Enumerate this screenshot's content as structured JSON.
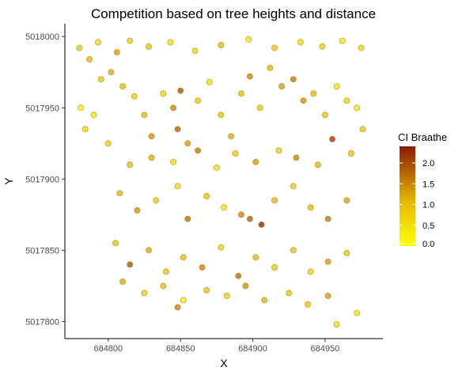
{
  "chart_data": {
    "type": "scatter",
    "title": "Competition based on tree heights and distance",
    "xlabel": "X",
    "ylabel": "Y",
    "xlim": [
      684770,
      684990
    ],
    "ylim": [
      5017788,
      5018009
    ],
    "x_ticks": [
      684800,
      684850,
      684900,
      684950
    ],
    "x_tick_labels": [
      "684800",
      "684850",
      "684900",
      "684950"
    ],
    "y_ticks": [
      5017800,
      5017850,
      5017900,
      5017950,
      5018000
    ],
    "y_tick_labels": [
      "5017800",
      "5017850",
      "5017900",
      "5017950",
      "5018000"
    ],
    "grid": false,
    "legend": {
      "title": "CI Braathe",
      "position": "right",
      "type": "colorbar",
      "range": [
        0.0,
        2.4
      ],
      "ticks": [
        0.0,
        0.5,
        1.0,
        1.5,
        2.0
      ],
      "tick_labels": [
        "0.0",
        "0.5",
        "1.0",
        "1.5",
        "2.0"
      ],
      "colors": [
        "#ffff00",
        "#e6b800",
        "#8b1a00"
      ]
    },
    "points": [
      {
        "x": 684780,
        "y": 5017992,
        "ci": 0.9
      },
      {
        "x": 684787,
        "y": 5017984,
        "ci": 1.2
      },
      {
        "x": 684793,
        "y": 5017996,
        "ci": 0.6
      },
      {
        "x": 684806,
        "y": 5017989,
        "ci": 1.4
      },
      {
        "x": 684815,
        "y": 5017997,
        "ci": 0.8
      },
      {
        "x": 684828,
        "y": 5017993,
        "ci": 1.0
      },
      {
        "x": 684843,
        "y": 5017996,
        "ci": 0.5
      },
      {
        "x": 684860,
        "y": 5017990,
        "ci": 0.7
      },
      {
        "x": 684878,
        "y": 5017994,
        "ci": 1.1
      },
      {
        "x": 684897,
        "y": 5017998,
        "ci": 0.4
      },
      {
        "x": 684915,
        "y": 5017992,
        "ci": 0.9
      },
      {
        "x": 684933,
        "y": 5017996,
        "ci": 0.6
      },
      {
        "x": 684948,
        "y": 5017993,
        "ci": 0.8
      },
      {
        "x": 684962,
        "y": 5017997,
        "ci": 0.3
      },
      {
        "x": 684975,
        "y": 5017992,
        "ci": 0.7
      },
      {
        "x": 684781,
        "y": 5017950,
        "ci": 0.2
      },
      {
        "x": 684784,
        "y": 5017935,
        "ci": 0.6
      },
      {
        "x": 684790,
        "y": 5017945,
        "ci": 0.3
      },
      {
        "x": 684795,
        "y": 5017970,
        "ci": 0.9
      },
      {
        "x": 684802,
        "y": 5017975,
        "ci": 1.3
      },
      {
        "x": 684810,
        "y": 5017965,
        "ci": 1.1
      },
      {
        "x": 684818,
        "y": 5017958,
        "ci": 0.8
      },
      {
        "x": 684825,
        "y": 5017945,
        "ci": 1.2
      },
      {
        "x": 684830,
        "y": 5017930,
        "ci": 1.5
      },
      {
        "x": 684838,
        "y": 5017960,
        "ci": 0.7
      },
      {
        "x": 684845,
        "y": 5017950,
        "ci": 1.6
      },
      {
        "x": 684848,
        "y": 5017935,
        "ci": 1.9
      },
      {
        "x": 684850,
        "y": 5017962,
        "ci": 2.0
      },
      {
        "x": 684855,
        "y": 5017925,
        "ci": 1.4
      },
      {
        "x": 684862,
        "y": 5017955,
        "ci": 0.9
      },
      {
        "x": 684870,
        "y": 5017968,
        "ci": 0.6
      },
      {
        "x": 684878,
        "y": 5017945,
        "ci": 1.0
      },
      {
        "x": 684885,
        "y": 5017930,
        "ci": 1.3
      },
      {
        "x": 684892,
        "y": 5017960,
        "ci": 1.1
      },
      {
        "x": 684898,
        "y": 5017972,
        "ci": 1.6
      },
      {
        "x": 684905,
        "y": 5017950,
        "ci": 0.9
      },
      {
        "x": 684912,
        "y": 5017978,
        "ci": 1.2
      },
      {
        "x": 684920,
        "y": 5017965,
        "ci": 1.4
      },
      {
        "x": 684928,
        "y": 5017970,
        "ci": 1.7
      },
      {
        "x": 684935,
        "y": 5017955,
        "ci": 1.5
      },
      {
        "x": 684942,
        "y": 5017960,
        "ci": 1.2
      },
      {
        "x": 684950,
        "y": 5017945,
        "ci": 1.0
      },
      {
        "x": 684958,
        "y": 5017965,
        "ci": 0.4
      },
      {
        "x": 684965,
        "y": 5017955,
        "ci": 0.7
      },
      {
        "x": 684972,
        "y": 5017950,
        "ci": 0.3
      },
      {
        "x": 684976,
        "y": 5017935,
        "ci": 0.9
      },
      {
        "x": 684800,
        "y": 5017925,
        "ci": 0.8
      },
      {
        "x": 684815,
        "y": 5017910,
        "ci": 1.1
      },
      {
        "x": 684830,
        "y": 5017915,
        "ci": 1.3
      },
      {
        "x": 684845,
        "y": 5017912,
        "ci": 0.6
      },
      {
        "x": 684862,
        "y": 5017920,
        "ci": 1.7
      },
      {
        "x": 684875,
        "y": 5017908,
        "ci": 0.5
      },
      {
        "x": 684888,
        "y": 5017918,
        "ci": 0.9
      },
      {
        "x": 684902,
        "y": 5017912,
        "ci": 1.4
      },
      {
        "x": 684918,
        "y": 5017920,
        "ci": 0.7
      },
      {
        "x": 684930,
        "y": 5017915,
        "ci": 1.6
      },
      {
        "x": 684945,
        "y": 5017910,
        "ci": 1.2
      },
      {
        "x": 684955,
        "y": 5017928,
        "ci": 2.2
      },
      {
        "x": 684968,
        "y": 5017918,
        "ci": 1.0
      },
      {
        "x": 684808,
        "y": 5017890,
        "ci": 1.2
      },
      {
        "x": 684820,
        "y": 5017878,
        "ci": 1.5
      },
      {
        "x": 684833,
        "y": 5017885,
        "ci": 0.9
      },
      {
        "x": 684848,
        "y": 5017895,
        "ci": 0.6
      },
      {
        "x": 684855,
        "y": 5017872,
        "ci": 1.8
      },
      {
        "x": 684868,
        "y": 5017888,
        "ci": 1.0
      },
      {
        "x": 684880,
        "y": 5017880,
        "ci": 0.4
      },
      {
        "x": 684892,
        "y": 5017875,
        "ci": 1.6
      },
      {
        "x": 684898,
        "y": 5017872,
        "ci": 1.9
      },
      {
        "x": 684906,
        "y": 5017868,
        "ci": 2.3
      },
      {
        "x": 684915,
        "y": 5017885,
        "ci": 1.2
      },
      {
        "x": 684928,
        "y": 5017895,
        "ci": 0.8
      },
      {
        "x": 684940,
        "y": 5017880,
        "ci": 1.1
      },
      {
        "x": 684952,
        "y": 5017872,
        "ci": 1.7
      },
      {
        "x": 684965,
        "y": 5017885,
        "ci": 1.4
      },
      {
        "x": 684805,
        "y": 5017855,
        "ci": 1.0
      },
      {
        "x": 684815,
        "y": 5017840,
        "ci": 2.0
      },
      {
        "x": 684828,
        "y": 5017850,
        "ci": 1.3
      },
      {
        "x": 684840,
        "y": 5017835,
        "ci": 0.9
      },
      {
        "x": 684852,
        "y": 5017845,
        "ci": 1.1
      },
      {
        "x": 684865,
        "y": 5017838,
        "ci": 1.6
      },
      {
        "x": 684878,
        "y": 5017852,
        "ci": 0.7
      },
      {
        "x": 684890,
        "y": 5017832,
        "ci": 1.8
      },
      {
        "x": 684902,
        "y": 5017845,
        "ci": 1.2
      },
      {
        "x": 684915,
        "y": 5017838,
        "ci": 0.8
      },
      {
        "x": 684928,
        "y": 5017850,
        "ci": 1.0
      },
      {
        "x": 684940,
        "y": 5017835,
        "ci": 0.6
      },
      {
        "x": 684952,
        "y": 5017842,
        "ci": 1.4
      },
      {
        "x": 684965,
        "y": 5017848,
        "ci": 0.9
      },
      {
        "x": 684810,
        "y": 5017828,
        "ci": 1.3
      },
      {
        "x": 684825,
        "y": 5017820,
        "ci": 0.8
      },
      {
        "x": 684838,
        "y": 5017825,
        "ci": 1.1
      },
      {
        "x": 684848,
        "y": 5017810,
        "ci": 1.6
      },
      {
        "x": 684852,
        "y": 5017815,
        "ci": 0.3
      },
      {
        "x": 684868,
        "y": 5017822,
        "ci": 1.0
      },
      {
        "x": 684882,
        "y": 5017818,
        "ci": 0.7
      },
      {
        "x": 684895,
        "y": 5017825,
        "ci": 1.5
      },
      {
        "x": 684908,
        "y": 5017815,
        "ci": 1.2
      },
      {
        "x": 684925,
        "y": 5017820,
        "ci": 0.9
      },
      {
        "x": 684938,
        "y": 5017812,
        "ci": 1.0
      },
      {
        "x": 684952,
        "y": 5017818,
        "ci": 1.4
      },
      {
        "x": 684958,
        "y": 5017798,
        "ci": 0.5
      },
      {
        "x": 684972,
        "y": 5017806,
        "ci": 0.4
      }
    ]
  }
}
